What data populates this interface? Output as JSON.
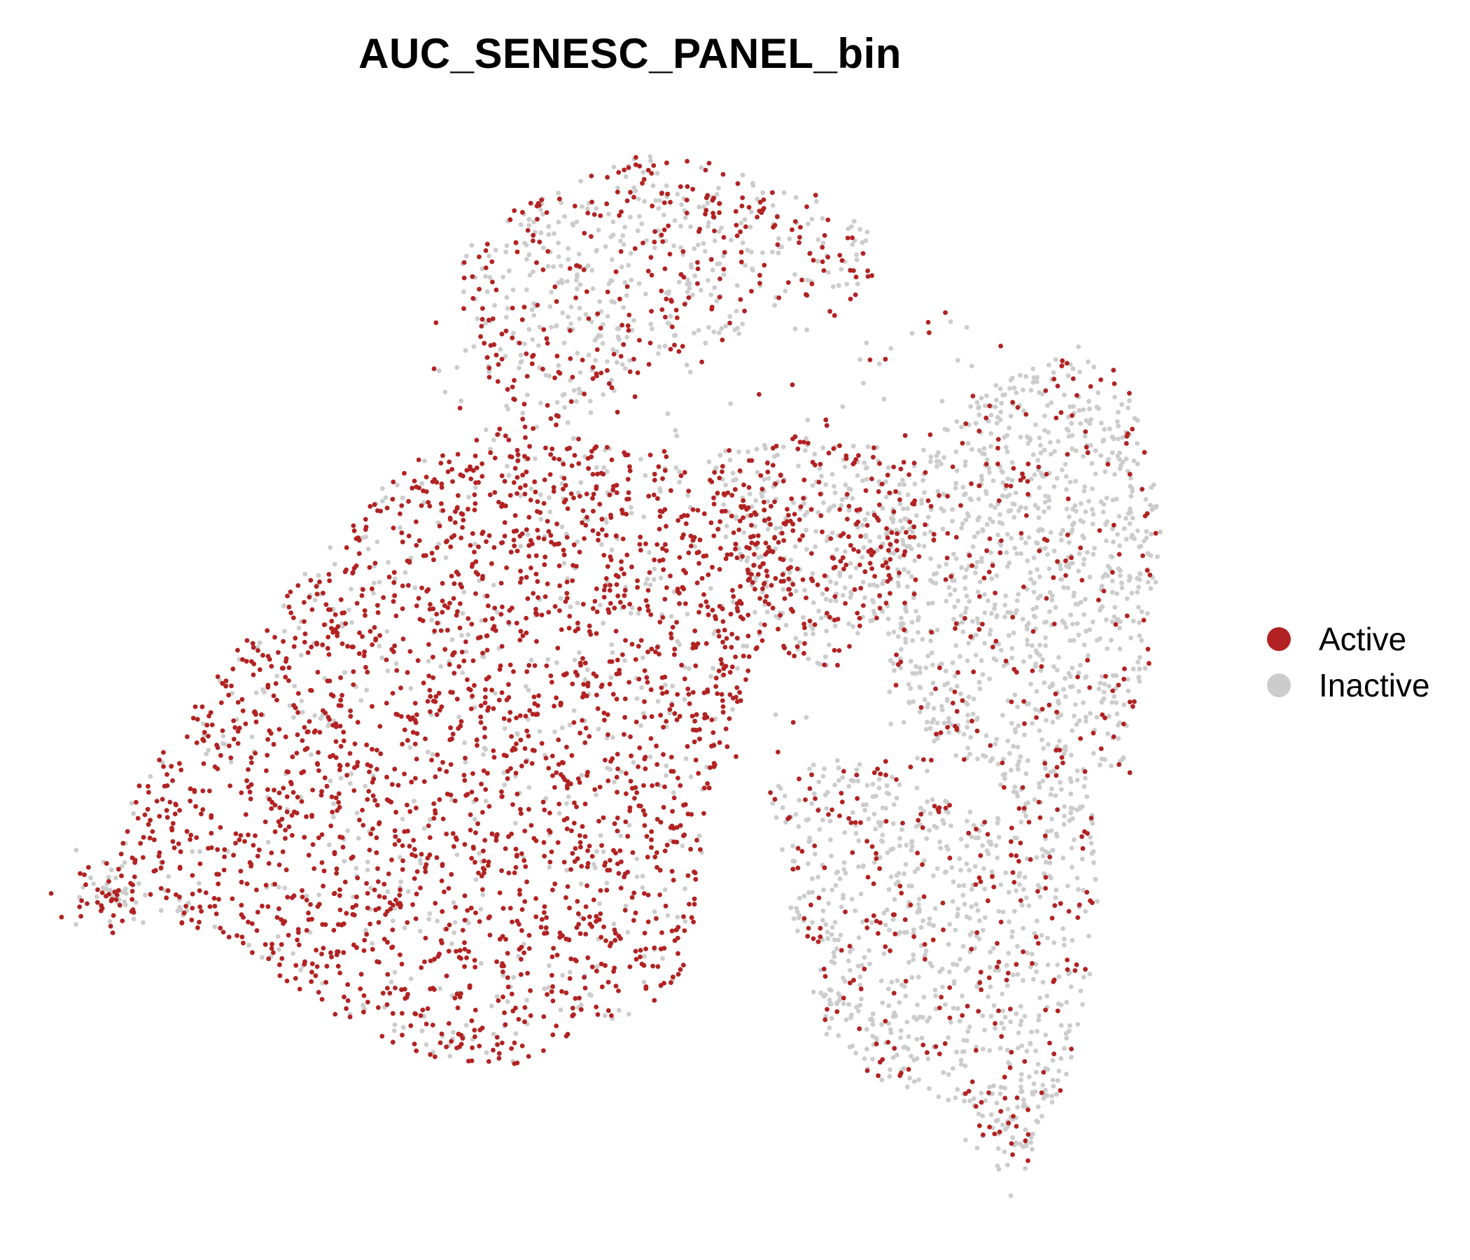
{
  "chart_data": {
    "type": "scatter",
    "title": "AUC_SENESC_PANEL_bin",
    "xlabel": "",
    "ylabel": "",
    "axes_visible": false,
    "grid": false,
    "legend_position": "right",
    "series": [
      {
        "name": "Active",
        "color": "#B22222"
      },
      {
        "name": "Inactive",
        "color": "#CCCCCC"
      }
    ],
    "legend": {
      "items": [
        {
          "label": "Active",
          "color": "#B22222"
        },
        {
          "label": "Inactive",
          "color": "#CCCCCC"
        }
      ]
    }
  }
}
